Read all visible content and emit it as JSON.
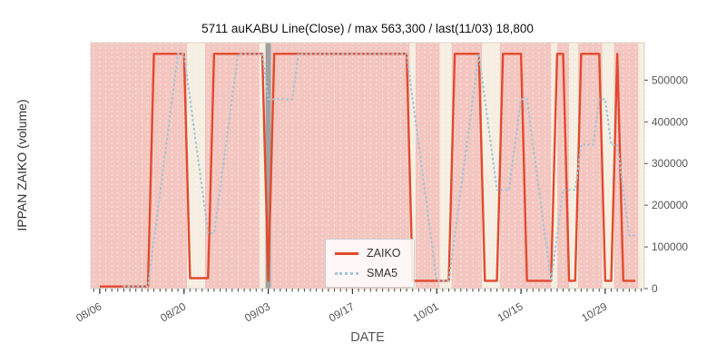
{
  "chart_data": {
    "type": "line",
    "title": "5711 auKABU Line(Close) / max 563,300 / last(11/03) 18,800",
    "xlabel": "DATE",
    "ylabel": "IPPAN ZAIKO (volume)",
    "max": 563300,
    "last": {
      "date": "11/03",
      "value": 18800
    },
    "ylim": [
      0,
      590000
    ],
    "y_ticks": [
      0,
      100000,
      200000,
      300000,
      400000,
      500000
    ],
    "x_index_origin": "08/06",
    "x_domain": [
      -1.5,
      90.5
    ],
    "x_ticks": [
      {
        "day": 0,
        "label": "08/06"
      },
      {
        "day": 14,
        "label": "08/20"
      },
      {
        "day": 28,
        "label": "09/03"
      },
      {
        "day": 42,
        "label": "09/17"
      },
      {
        "day": 56,
        "label": "10/01"
      },
      {
        "day": 70,
        "label": "10/15"
      },
      {
        "day": 84,
        "label": "10/29"
      }
    ],
    "legend": {
      "position": "lower center",
      "entries": [
        "ZAIKO",
        "SMA5"
      ]
    },
    "background": {
      "base": "#f5eee1",
      "band_color": "#f3c6c0",
      "holiday_color": "#a0a0a0",
      "holiday_band": [
        27.55,
        28.45
      ],
      "pink_bands": [
        [
          -1.5,
          14.5
        ],
        [
          17.5,
          26.5
        ],
        [
          28.5,
          51.5
        ],
        [
          52.5,
          56.5
        ],
        [
          58.5,
          63.5
        ],
        [
          66.5,
          75.0
        ],
        [
          76.0,
          78.0
        ],
        [
          79.5,
          83.5
        ],
        [
          85.5,
          89.5
        ]
      ]
    },
    "series": [
      {
        "name": "ZAIKO",
        "style": "solid",
        "color": "#e24a2d",
        "values": [
          5000,
          5000,
          5000,
          5000,
          5000,
          5000,
          5000,
          5000,
          5000,
          563300,
          563300,
          563300,
          563300,
          563300,
          563300,
          25000,
          25000,
          25000,
          25000,
          563300,
          563300,
          563300,
          563300,
          563300,
          563300,
          563300,
          563300,
          563300,
          18800,
          563300,
          563300,
          563300,
          563300,
          563300,
          563300,
          563300,
          563300,
          563300,
          563300,
          563300,
          563300,
          563300,
          563300,
          563300,
          563300,
          563300,
          563300,
          563300,
          563300,
          563300,
          563300,
          563300,
          18800,
          18800,
          18800,
          18800,
          18800,
          18800,
          18800,
          563300,
          563300,
          563300,
          563300,
          563300,
          18800,
          18800,
          18800,
          563300,
          563300,
          563300,
          563300,
          18800,
          18800,
          18800,
          18800,
          18800,
          563300,
          563300,
          18800,
          18800,
          563300,
          563300,
          563300,
          563300,
          18800,
          18800,
          563300,
          18800,
          18800,
          18800
        ]
      },
      {
        "name": "SMA5",
        "style": "dotted",
        "color": "#a6c4d6",
        "derived": "rolling_mean_window_5_of_ZAIKO"
      }
    ]
  }
}
